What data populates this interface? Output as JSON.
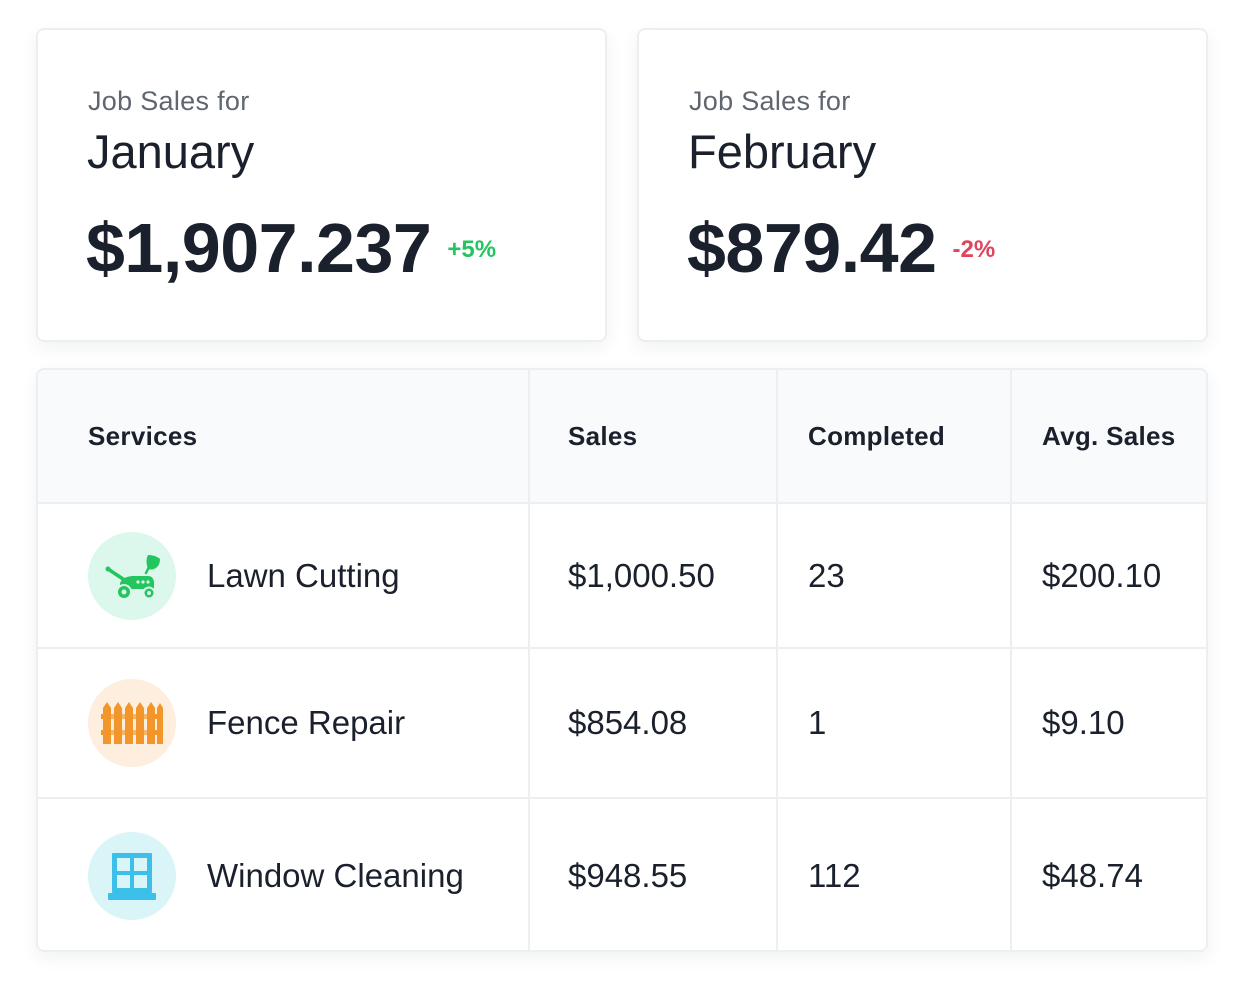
{
  "cards": [
    {
      "caption": "Job Sales for",
      "month": "January",
      "amount": "$1,907.237",
      "change": "+5%",
      "change_color": "#22c55e"
    },
    {
      "caption": "Job Sales for",
      "month": "February",
      "amount": "$879.42",
      "change": "-2%",
      "change_color": "#e0435b"
    }
  ],
  "table": {
    "headers": [
      "Services",
      "Sales",
      "Completed",
      "Avg. Sales"
    ],
    "rows": [
      {
        "service": "Lawn Cutting",
        "icon": "lawn-mower-icon",
        "icon_color": "#22c55e",
        "icon_bg": "#dcf7ec",
        "sales": "$1,000.50",
        "completed": "23",
        "avg_sales": "$200.10"
      },
      {
        "service": "Fence Repair",
        "icon": "fence-icon",
        "icon_color": "#f2952b",
        "icon_bg": "#fdeedd",
        "sales": "$854.08",
        "completed": "1",
        "avg_sales": "$9.10"
      },
      {
        "service": "Window Cleaning",
        "icon": "window-icon",
        "icon_color": "#3cbfe8",
        "icon_bg": "#d9f5f7",
        "sales": "$948.55",
        "completed": "112",
        "avg_sales": "$48.74"
      }
    ]
  }
}
